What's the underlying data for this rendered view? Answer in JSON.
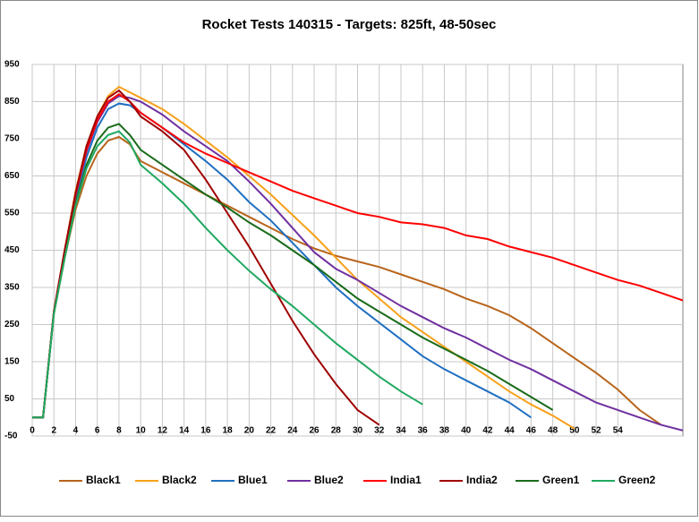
{
  "chart_data": {
    "type": "line",
    "title": "Rocket Tests 140315 - Targets: 825ft, 48-50sec",
    "x": [
      0,
      1,
      2,
      3,
      4,
      5,
      6,
      7,
      8,
      9,
      10,
      12,
      14,
      16,
      18,
      20,
      22,
      24,
      26,
      28,
      30,
      32,
      34,
      36,
      38,
      40,
      42,
      44,
      46,
      48,
      50,
      52,
      54,
      56,
      58,
      60
    ],
    "xlim": [
      0,
      60
    ],
    "xticks": [
      0,
      2,
      4,
      6,
      8,
      10,
      12,
      14,
      16,
      18,
      20,
      22,
      24,
      26,
      28,
      30,
      32,
      34,
      36,
      38,
      40,
      42,
      44,
      46,
      48,
      50,
      52,
      54
    ],
    "ylim": [
      -50,
      950
    ],
    "yticks": [
      -50,
      50,
      150,
      250,
      350,
      450,
      550,
      650,
      750,
      850,
      950
    ],
    "grid": true,
    "legend": "bottom",
    "series": [
      {
        "name": "Black1",
        "color": "#b8651b",
        "values": [
          0,
          0,
          280,
          430,
          560,
          650,
          710,
          745,
          755,
          735,
          690,
          660,
          630,
          600,
          570,
          540,
          510,
          480,
          455,
          435,
          420,
          405,
          385,
          365,
          345,
          320,
          300,
          275,
          240,
          200,
          160,
          120,
          75,
          20,
          -20,
          null
        ]
      },
      {
        "name": "Black2",
        "color": "#f7a11a",
        "values": [
          0,
          0,
          285,
          450,
          610,
          730,
          810,
          865,
          890,
          875,
          860,
          830,
          790,
          745,
          700,
          650,
          600,
          545,
          490,
          430,
          370,
          320,
          270,
          230,
          190,
          150,
          110,
          70,
          35,
          5,
          -30,
          null,
          null,
          null,
          null,
          null
        ]
      },
      {
        "name": "Blue1",
        "color": "#1f6fc1",
        "values": [
          0,
          0,
          280,
          440,
          590,
          700,
          780,
          830,
          845,
          840,
          820,
          780,
          735,
          690,
          640,
          580,
          530,
          470,
          410,
          350,
          300,
          255,
          210,
          165,
          130,
          100,
          70,
          40,
          0,
          null,
          null,
          null,
          null,
          null,
          null,
          null
        ]
      },
      {
        "name": "Blue2",
        "color": "#7030a0",
        "values": [
          0,
          0,
          285,
          450,
          600,
          715,
          795,
          845,
          865,
          860,
          850,
          815,
          770,
          730,
          690,
          635,
          575,
          510,
          445,
          400,
          370,
          335,
          300,
          270,
          240,
          215,
          185,
          155,
          130,
          100,
          70,
          40,
          20,
          0,
          -20,
          -35
        ]
      },
      {
        "name": "India1",
        "color": "#ff0000",
        "values": [
          0,
          0,
          285,
          450,
          600,
          720,
          800,
          850,
          870,
          850,
          820,
          780,
          740,
          710,
          685,
          660,
          635,
          610,
          590,
          570,
          550,
          540,
          525,
          520,
          510,
          490,
          480,
          460,
          445,
          430,
          410,
          390,
          370,
          355,
          335,
          315
        ]
      },
      {
        "name": "India2",
        "color": "#a00000",
        "values": [
          0,
          0,
          285,
          450,
          605,
          730,
          810,
          860,
          880,
          850,
          810,
          770,
          720,
          640,
          550,
          460,
          360,
          260,
          170,
          90,
          20,
          -20,
          null,
          null,
          null,
          null,
          null,
          null,
          null,
          null,
          null,
          null,
          null,
          null,
          null,
          null
        ]
      },
      {
        "name": "Green1",
        "color": "#1a6b1a",
        "values": [
          0,
          0,
          280,
          430,
          575,
          680,
          745,
          780,
          790,
          760,
          720,
          680,
          640,
          600,
          565,
          525,
          490,
          450,
          410,
          365,
          320,
          285,
          250,
          215,
          185,
          155,
          125,
          90,
          55,
          20,
          null,
          null,
          null,
          null,
          null,
          null
        ]
      },
      {
        "name": "Green2",
        "color": "#20a860",
        "values": [
          0,
          0,
          280,
          430,
          570,
          670,
          730,
          760,
          770,
          740,
          680,
          630,
          575,
          510,
          450,
          395,
          345,
          300,
          250,
          200,
          155,
          110,
          70,
          35,
          null,
          null,
          null,
          null,
          null,
          null,
          null,
          null,
          null,
          null,
          null,
          null
        ]
      }
    ]
  }
}
